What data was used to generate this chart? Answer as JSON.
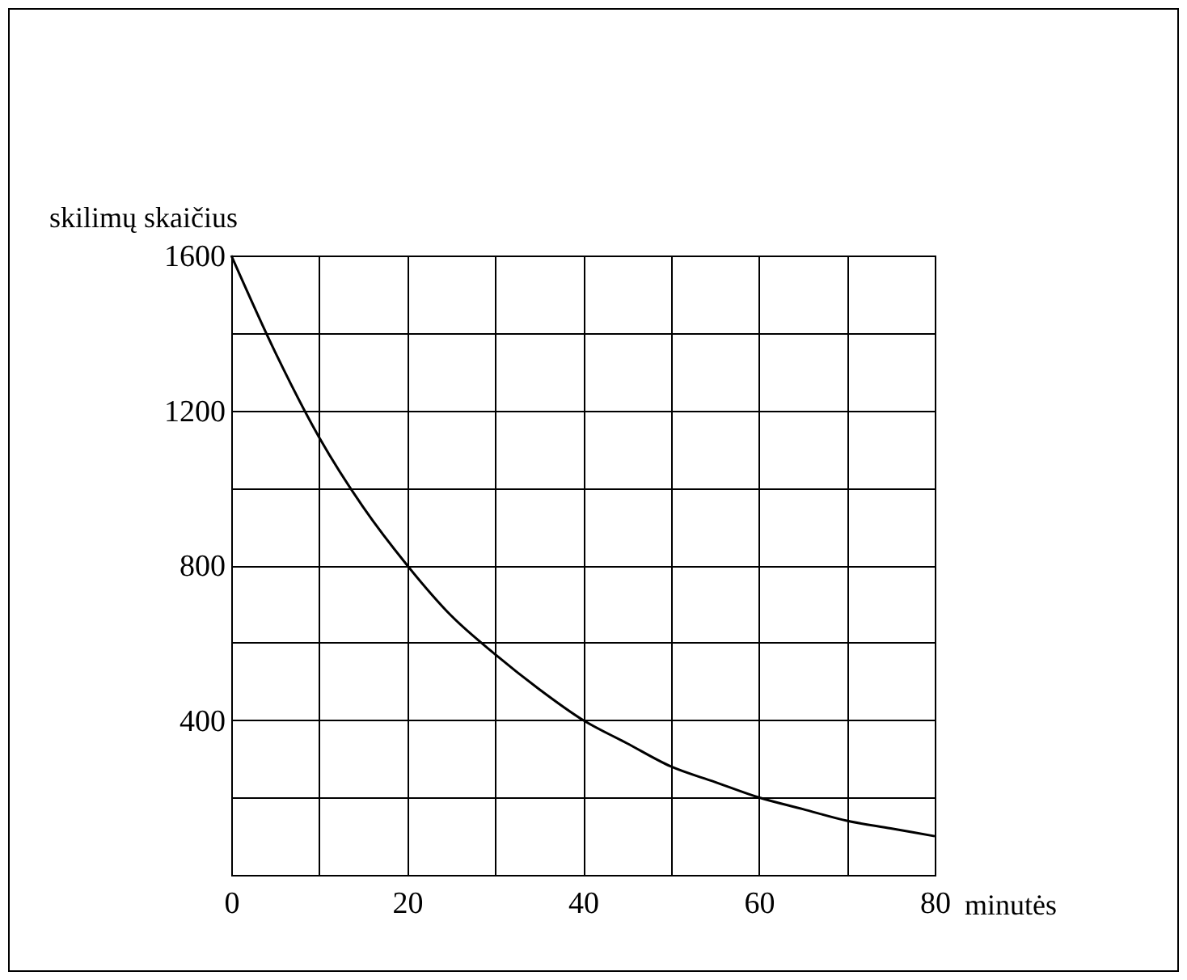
{
  "chart_data": {
    "type": "line",
    "xlabel": "minutės",
    "ylabel": "skilimų skaičius",
    "x": [
      0,
      5,
      10,
      15,
      20,
      25,
      30,
      35,
      40,
      45,
      50,
      55,
      60,
      65,
      70,
      75,
      80
    ],
    "series": [
      {
        "color": "#000000",
        "values": [
          1600,
          1350,
          1130,
          950,
          800,
          670,
          570,
          480,
          400,
          340,
          280,
          240,
          200,
          170,
          140,
          120,
          100
        ]
      }
    ],
    "xlim": [
      0,
      80
    ],
    "ylim": [
      0,
      1600
    ],
    "xticks": [
      0,
      {
        "value": 10,
        "label": null
      },
      20,
      {
        "value": 30,
        "label": null
      },
      40,
      {
        "value": 50,
        "label": null
      },
      60,
      {
        "value": 70,
        "label": null
      },
      80
    ],
    "yticks": [
      {
        "value": 0,
        "label": null
      },
      {
        "value": 200,
        "label": null
      },
      400,
      {
        "value": 600,
        "label": null
      },
      800,
      {
        "value": 1000,
        "label": null
      },
      1200,
      {
        "value": 1400,
        "label": null
      },
      1600
    ],
    "grid": true,
    "marker": "none",
    "line_style": "solid"
  }
}
